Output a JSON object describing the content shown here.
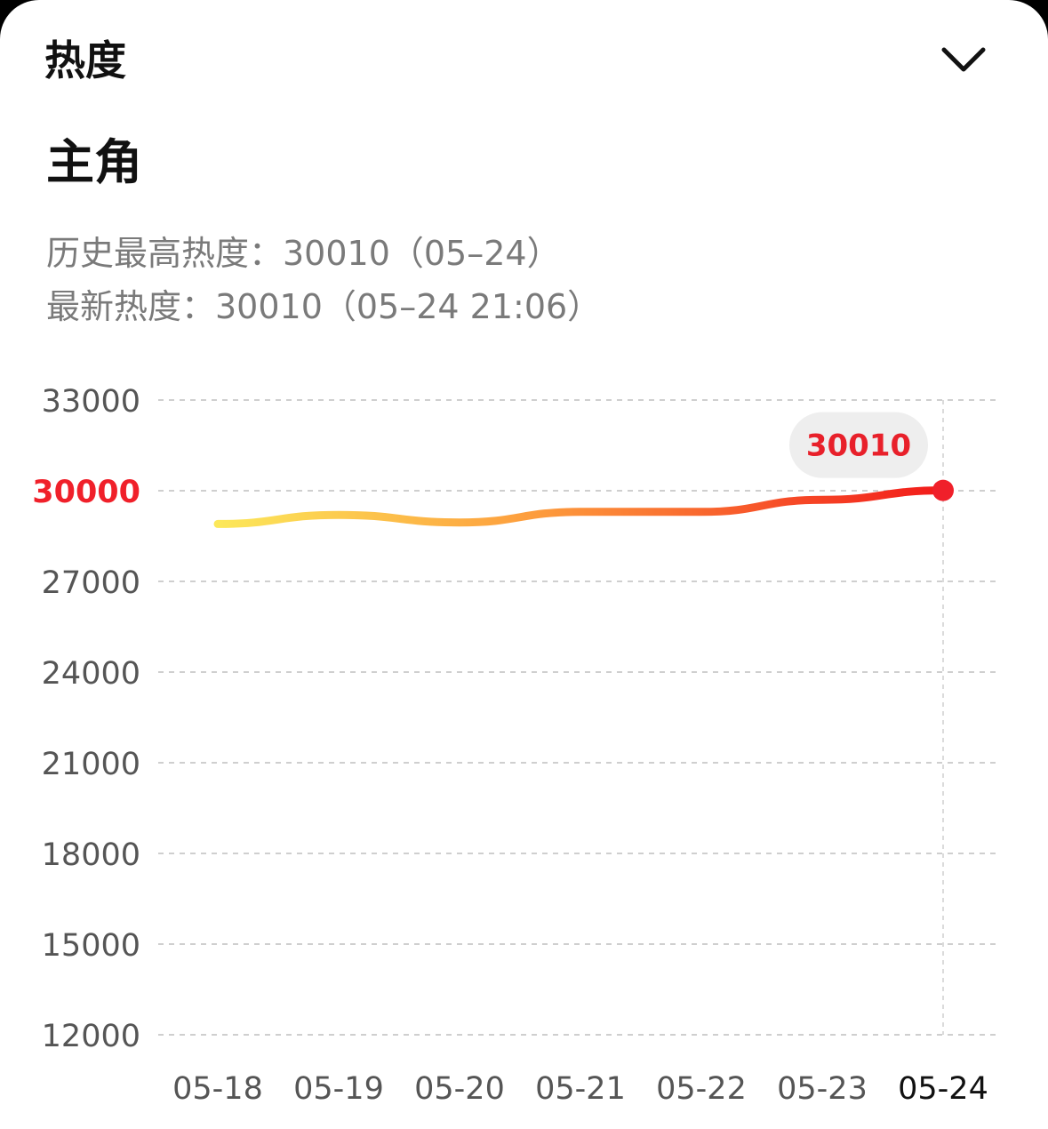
{
  "header": {
    "title": "热度",
    "collapse_icon": "chevron-down-icon"
  },
  "subject": {
    "name": "主角"
  },
  "stats": {
    "history_high": "历史最高热度：30010（05–24）",
    "latest": "最新热度：30010（05–24 21:06）"
  },
  "colors": {
    "line_start": "#fce85a",
    "line_mid": "#fd9a3c",
    "line_end": "#f21a1a",
    "highlight": "#f0202a",
    "grid": "#cfcfcf",
    "tooltip_bg": "#eeeeee"
  },
  "chart_data": {
    "type": "line",
    "x": [
      "05-18",
      "05-19",
      "05-20",
      "05-21",
      "05-22",
      "05-23",
      "05-24"
    ],
    "series": [
      {
        "values": [
          28900,
          29200,
          28950,
          29300,
          29300,
          29700,
          30010
        ]
      }
    ],
    "y_ticks": [
      "33000",
      "30000",
      "27000",
      "24000",
      "21000",
      "18000",
      "15000",
      "12000"
    ],
    "ylim": [
      12000,
      33000
    ],
    "highlighted_y_tick": "30000",
    "highlighted_x": "05-24",
    "tooltip": "30010",
    "grid": true,
    "grid_style": "dashed"
  }
}
